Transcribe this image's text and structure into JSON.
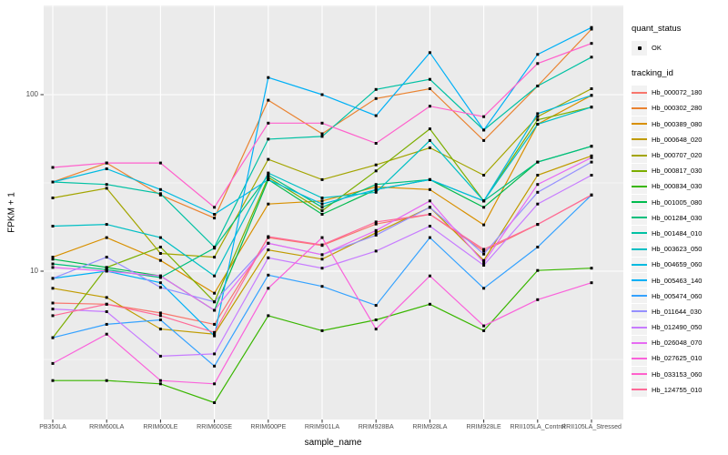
{
  "figure": {
    "y_axis_title": "FPKM + 1",
    "x_axis_title": "sample_name",
    "legend": {
      "quant_status_title": "quant_status",
      "ok_label": "OK",
      "tracking_id_title": "tracking_id"
    }
  },
  "chart_data": {
    "type": "line",
    "title": "",
    "xlabel": "sample_name",
    "ylabel": "FPKM + 1",
    "y_scale": "log10",
    "ylim": [
      1.4,
      320
    ],
    "y_tick_values": [
      10,
      100
    ],
    "y_tick_labels": [
      "10",
      "100"
    ],
    "y_minor_tick_values": [
      3.162,
      31.62,
      316.2
    ],
    "grid": true,
    "panel_color": "#EBEBEB",
    "gridline_color": "#FFFFFF",
    "axis_text_color": "#4D4D4D",
    "point_marker": "small black square (quant_status = OK)",
    "legend_position": "right",
    "x": [
      "PB350LA",
      "RRIM600LA",
      "RRIM600LE",
      "RRIM600SE",
      "RRIM600PE",
      "RRIM901LA",
      "RRIM928BA",
      "RRIM928LA",
      "RRIM928LE",
      "RRII105LA_Control",
      "RRII105LA_Stressed"
    ],
    "series": [
      {
        "name": "Hb_000072_180",
        "color": "#F8766D",
        "values": [
          6.6,
          6.5,
          5.8,
          5.0,
          15.5,
          14.0,
          18.5,
          21,
          13.0,
          18.4,
          27
        ]
      },
      {
        "name": "Hb_000302_280",
        "color": "#EA8331",
        "values": [
          32,
          41,
          27,
          20,
          93,
          60,
          95,
          108,
          55,
          112,
          235
        ]
      },
      {
        "name": "Hb_000389_080",
        "color": "#D89000",
        "values": [
          12,
          15.5,
          11.5,
          7.5,
          24,
          25,
          30,
          29,
          18.3,
          68,
          99
        ]
      },
      {
        "name": "Hb_000648_020",
        "color": "#C09B00",
        "values": [
          8.0,
          7.1,
          4.7,
          4.4,
          13.2,
          11.7,
          16.5,
          23,
          11.5,
          35,
          45
        ]
      },
      {
        "name": "Hb_000707_020",
        "color": "#A3A500",
        "values": [
          26,
          29.5,
          12.6,
          12.0,
          43,
          33,
          40,
          50,
          35,
          75,
          108
        ]
      },
      {
        "name": "Hb_000817_030",
        "color": "#7CAE00",
        "values": [
          4.2,
          10.5,
          13.7,
          6.7,
          34,
          22,
          37,
          64,
          25,
          72,
          85
        ]
      },
      {
        "name": "Hb_000834_030",
        "color": "#39B600",
        "values": [
          2.4,
          2.4,
          2.3,
          1.8,
          5.6,
          4.6,
          5.3,
          6.5,
          4.6,
          10.1,
          10.4
        ]
      },
      {
        "name": "Hb_001005_080",
        "color": "#00BB4E",
        "values": [
          11.7,
          10.5,
          9.4,
          6.0,
          33,
          21,
          29,
          33,
          23,
          41.5,
          51
        ]
      },
      {
        "name": "Hb_001284_030",
        "color": "#00BF7D",
        "values": [
          11.0,
          10.2,
          9.2,
          13.5,
          35,
          23,
          31,
          33,
          25,
          41.5,
          51
        ]
      },
      {
        "name": "Hb_001484_010",
        "color": "#00C1A3",
        "values": [
          32,
          31,
          27.5,
          13.7,
          56,
          58,
          107,
          122,
          63,
          112,
          163
        ]
      },
      {
        "name": "Hb_003623_050",
        "color": "#00BFC4",
        "values": [
          18,
          18.4,
          15.5,
          9.4,
          36,
          26,
          28,
          55,
          25,
          68,
          85
        ]
      },
      {
        "name": "Hb_004659_060",
        "color": "#00BAE0",
        "values": [
          32,
          38,
          29,
          21,
          33,
          24,
          29,
          33,
          25,
          78,
          99
        ]
      },
      {
        "name": "Hb_005463_140",
        "color": "#00B0F6",
        "values": [
          9.1,
          10.0,
          8.6,
          4.3,
          125,
          100,
          76,
          173,
          63,
          169,
          240
        ]
      },
      {
        "name": "Hb_005474_060",
        "color": "#35A2FF",
        "values": [
          4.2,
          5.0,
          5.3,
          2.9,
          9.5,
          8.2,
          6.4,
          15.5,
          8.0,
          13.7,
          27
        ]
      },
      {
        "name": "Hb_011644_030",
        "color": "#9590FF",
        "values": [
          9.1,
          12.0,
          8.1,
          6.7,
          14.4,
          12.4,
          16,
          23,
          12.5,
          28,
          41.5
        ]
      },
      {
        "name": "Hb_012490_050",
        "color": "#C77CFF",
        "values": [
          6.1,
          5.9,
          3.3,
          3.4,
          11.9,
          10.4,
          13,
          18,
          10.8,
          24,
          35
        ]
      },
      {
        "name": "Hb_026048_070",
        "color": "#E76BF3",
        "values": [
          10.5,
          10.0,
          9.4,
          6.0,
          14.4,
          12.4,
          17,
          25,
          11.2,
          31,
          44
        ]
      },
      {
        "name": "Hb_027625_010",
        "color": "#FA62DB",
        "values": [
          3.0,
          4.4,
          2.4,
          2.3,
          8.0,
          15.5,
          4.7,
          9.4,
          4.9,
          6.9,
          8.6
        ]
      },
      {
        "name": "Hb_033153_060",
        "color": "#FF61CC",
        "values": [
          38.7,
          41,
          41,
          23,
          69,
          69,
          53,
          86,
          75,
          150,
          195
        ]
      },
      {
        "name": "Hb_124755_010",
        "color": "#FF6A98",
        "values": [
          5.6,
          6.5,
          5.6,
          4.5,
          15.7,
          14.1,
          19,
          21,
          13.3,
          18.4,
          27
        ]
      }
    ]
  }
}
